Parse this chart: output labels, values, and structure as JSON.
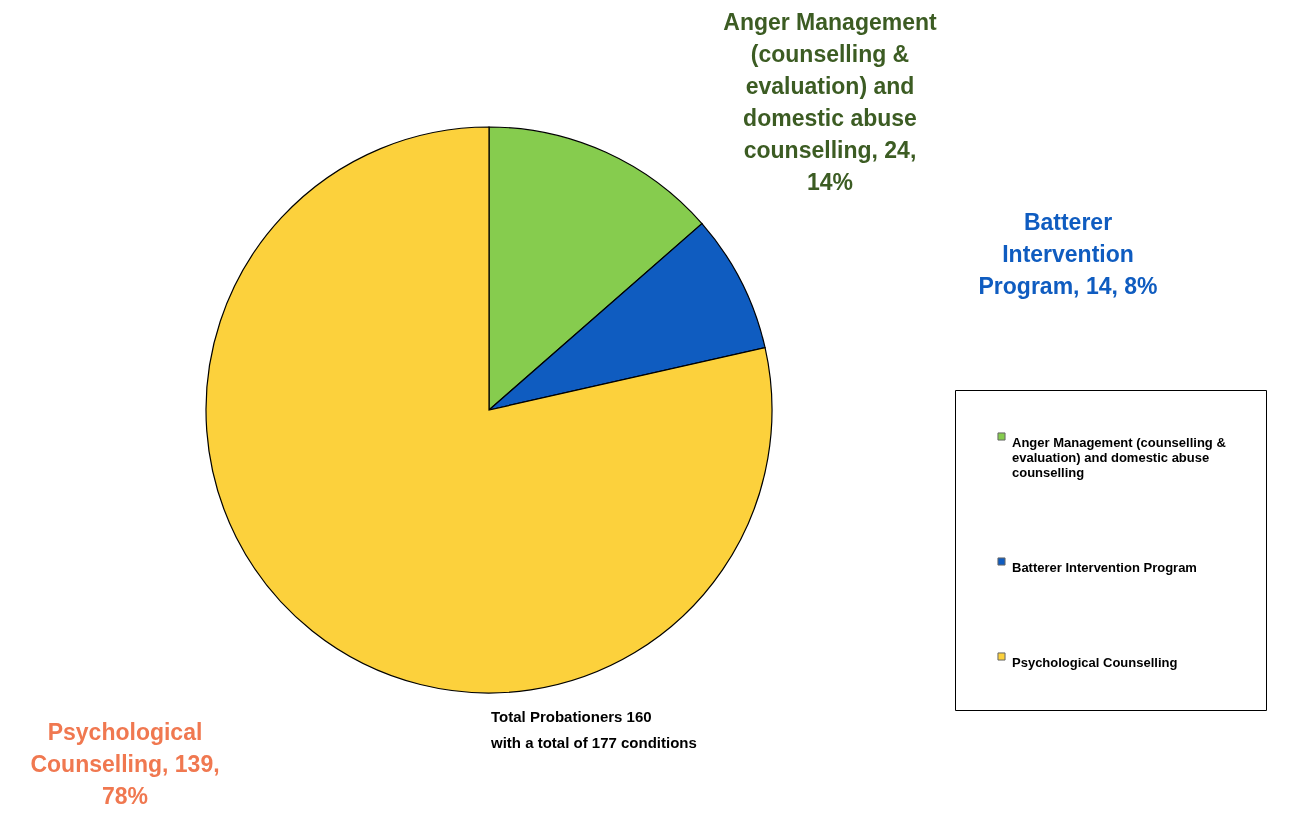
{
  "chart_data": {
    "type": "pie",
    "categories": [
      "Anger Management (counselling & evaluation) and domestic abuse counselling",
      "Batterer Intervention Program",
      "Psychological Counselling"
    ],
    "values": [
      24,
      14,
      139
    ],
    "value_labels": [
      ", 24, 14%",
      ", 14, 8%",
      ", 139, 78%"
    ],
    "colors": [
      "#86cc4e",
      "#0f5cc0",
      "#fcd13c"
    ],
    "legend": "right",
    "annotations": [
      "Total Probationers 160\nwith a total of 177 conditions"
    ]
  }
}
